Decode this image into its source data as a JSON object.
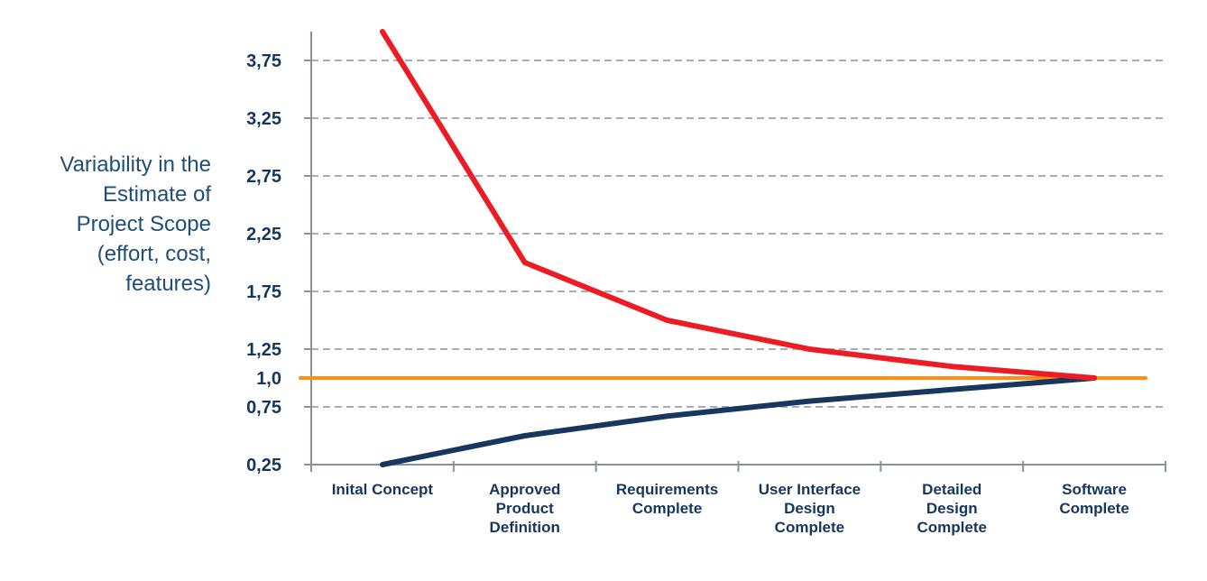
{
  "chart_data": {
    "type": "line",
    "title": "",
    "xlabel": "",
    "ylabel": "Variability in the Estimate of Project Scope (effort, cost, features)",
    "ylabel_display": "Variability in the\nEstimate of\nProject Scope\n(effort, cost,\nfeatures)",
    "categories": [
      "Inital Concept",
      "Approved Product Definition",
      "Requirements Complete",
      "User Interface Design Complete",
      "Detailed Design Complete",
      "Software Complete"
    ],
    "category_label_lines": [
      [
        "Inital Concept"
      ],
      [
        "Approved",
        "Product",
        "Definition"
      ],
      [
        "Requirements",
        "Complete"
      ],
      [
        "User Interface",
        "Design",
        "Complete"
      ],
      [
        "Detailed",
        "Design",
        "Complete"
      ],
      [
        "Software",
        "Complete"
      ]
    ],
    "series": [
      {
        "name": "upper-estimate",
        "color": "#EC1C24",
        "stroke_width": 6,
        "z_order": 3,
        "values": [
          4.0,
          2.0,
          1.5,
          1.25,
          1.1,
          1.0
        ]
      },
      {
        "name": "lower-estimate",
        "color": "#17375E",
        "stroke_width": 6,
        "z_order": 2,
        "values": [
          0.25,
          0.5,
          0.67,
          0.8,
          0.9,
          1.0
        ]
      },
      {
        "name": "nominal-baseline",
        "color": "#FF8E12",
        "stroke_width": 4,
        "z_order": 1,
        "full_width": true,
        "values": [
          1.0,
          1.0,
          1.0,
          1.0,
          1.0,
          1.0
        ]
      }
    ],
    "y_ticks": [
      {
        "label": "3,75",
        "value": 3.75
      },
      {
        "label": "3,25",
        "value": 3.25
      },
      {
        "label": "2,75",
        "value": 2.75
      },
      {
        "label": "2,25",
        "value": 2.25
      },
      {
        "label": "1,75",
        "value": 1.75
      },
      {
        "label": "1,25",
        "value": 1.25
      },
      {
        "label": "1,0",
        "value": 1.0
      },
      {
        "label": "0,75",
        "value": 0.75
      },
      {
        "label": "0,25",
        "value": 0.25
      }
    ],
    "gridline_values": [
      0.75,
      1.25,
      1.75,
      2.25,
      2.75,
      3.25,
      3.75
    ],
    "ylim": [
      0.25,
      4.0
    ],
    "grid": "dashed-horizontal",
    "legend": "none",
    "colors": {
      "background": "#FFFFFF",
      "axis": "#8B919A",
      "grid": "#A8ADB5",
      "tick_label": "#17365D",
      "category_label": "#17365D",
      "ylabel": "#1F4E79",
      "upper_line": "#EC1C24",
      "lower_line": "#17375E",
      "baseline": "#FF8E12"
    }
  }
}
